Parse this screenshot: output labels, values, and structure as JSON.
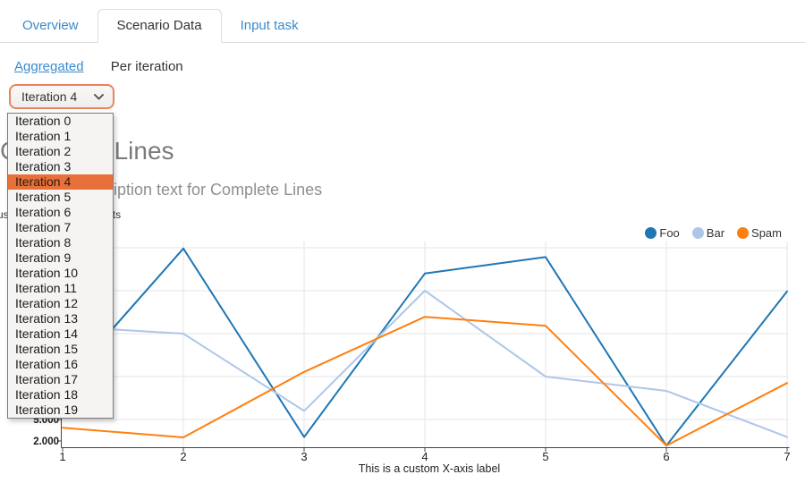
{
  "tabs": [
    {
      "label": "Overview",
      "active": false
    },
    {
      "label": "Scenario Data",
      "active": true
    },
    {
      "label": "Input task",
      "active": false
    }
  ],
  "view_links": {
    "aggregated": "Aggregated",
    "per_iteration": "Per iteration"
  },
  "iteration_select": {
    "value": "Iteration 4",
    "selected_index": 4,
    "options": [
      "Iteration 0",
      "Iteration 1",
      "Iteration 2",
      "Iteration 3",
      "Iteration 4",
      "Iteration 5",
      "Iteration 6",
      "Iteration 7",
      "Iteration 8",
      "Iteration 9",
      "Iteration 10",
      "Iteration 11",
      "Iteration 12",
      "Iteration 13",
      "Iteration 14",
      "Iteration 15",
      "Iteration 16",
      "Iteration 17",
      "Iteration 18",
      "Iteration 19"
    ]
  },
  "chart": {
    "title": "Complete Lines",
    "title_visible_part": "Lines",
    "description": "Description text for Complete Lines",
    "description_visible_part": "iption text for Complete Lines",
    "y_axis_name": "This is a custom Y-axis label in units",
    "y_axis_name_visible_part": "units"
  },
  "chart_data": {
    "type": "line",
    "x": [
      1,
      2,
      3,
      4,
      5,
      6,
      7
    ],
    "series": [
      {
        "name": "Foo",
        "color": "#1f77b4",
        "values": [
          9750,
          28900,
          2550,
          25400,
          27700,
          1350,
          22900
        ]
      },
      {
        "name": "Bar",
        "color": "#aec7e8",
        "values": [
          18000,
          17000,
          6200,
          23000,
          11000,
          9000,
          2550
        ]
      },
      {
        "name": "Spam",
        "color": "#ff7f0e",
        "values": [
          3850,
          2500,
          11650,
          19350,
          18100,
          1350,
          10100
        ]
      }
    ],
    "xlabel": "This is a custom X-axis label",
    "y_ticks_visible": [
      {
        "label": "2.000",
        "value": 2000
      },
      {
        "label": "5.000",
        "value": 5000
      }
    ],
    "y_gridline_values": [
      5000,
      11000,
      17000,
      23000,
      29000
    ],
    "ylim": [
      1050,
      29900
    ],
    "grid": true,
    "legend_position": "top-right"
  },
  "colors": {
    "link_blue": "#3a8bcd",
    "selection_orange": "#e8703a",
    "select_border_orange": "#e8835c",
    "gridline_gray": "#e6e6e6",
    "axis_dark": "#444444"
  }
}
